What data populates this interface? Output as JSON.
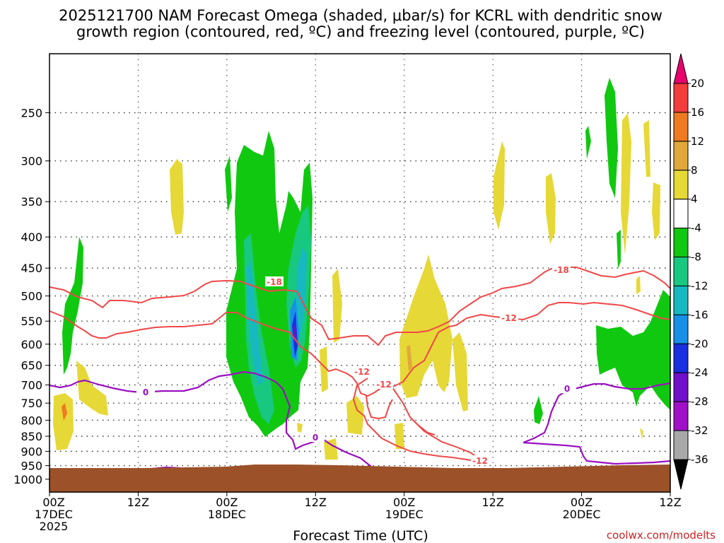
{
  "chart_data": {
    "type": "heatmap",
    "title_lines": [
      "2025121700 NAM Forecast Omega (shaded, μbar/s) for KCRL with dendritic snow",
      "growth region (contoured, red, ºC) and freezing level (contoured, purple, ºC)"
    ],
    "xlabel": "Forecast Time (UTC)",
    "credit": "coolwx.com/modelts",
    "x_range_hours": [
      0,
      84
    ],
    "x_ticks": [
      {
        "h": 0,
        "lines": [
          "00Z",
          "17DEC",
          "2025"
        ]
      },
      {
        "h": 12,
        "lines": [
          "12Z"
        ]
      },
      {
        "h": 24,
        "lines": [
          "00Z",
          "18DEC"
        ]
      },
      {
        "h": 36,
        "lines": [
          "12Z"
        ]
      },
      {
        "h": 48,
        "lines": [
          "00Z",
          "19DEC"
        ]
      },
      {
        "h": 60,
        "lines": [
          "12Z"
        ]
      },
      {
        "h": 72,
        "lines": [
          "00Z",
          "20DEC"
        ]
      },
      {
        "h": 84,
        "lines": [
          "12Z"
        ]
      }
    ],
    "y_levels": [
      "250",
      "300",
      "350",
      "400",
      "450",
      "500",
      "550",
      "600",
      "650",
      "700",
      "750",
      "800",
      "850",
      "900",
      "950",
      "1000"
    ],
    "y_range_hpa": [
      200,
      1050
    ],
    "y_scale": "log-pressure (inverted)",
    "grid": true,
    "surface_color": "#9c5128",
    "colorbar": {
      "labels": [
        "20",
        "16",
        "12",
        "8",
        "4",
        "-4",
        "-8",
        "-12",
        "-16",
        "-20",
        "-24",
        "-28",
        "-32",
        "-36"
      ],
      "colors": [
        "#e8006c",
        "#f33c3c",
        "#ee7a22",
        "#e0a83a",
        "#e6d836",
        "#ffffff",
        "#10c810",
        "#18c880",
        "#18b8c0",
        "#1890e8",
        "#1830e0",
        "#7010c8",
        "#a010c8",
        "#a8a8a8",
        "#000000"
      ]
    },
    "contour_labels": [
      {
        "text": "-18",
        "color": "#f04848"
      },
      {
        "text": "-18",
        "color": "#f04848"
      },
      {
        "text": "-12",
        "color": "#f04848"
      },
      {
        "text": "-12",
        "color": "#f04848"
      },
      {
        "text": "-12",
        "color": "#f04848"
      },
      {
        "text": "-12",
        "color": "#f04848"
      },
      {
        "text": "0",
        "color": "#9a10c0"
      },
      {
        "text": "0",
        "color": "#9a10c0"
      },
      {
        "text": "0",
        "color": "#9a10c0"
      }
    ]
  }
}
